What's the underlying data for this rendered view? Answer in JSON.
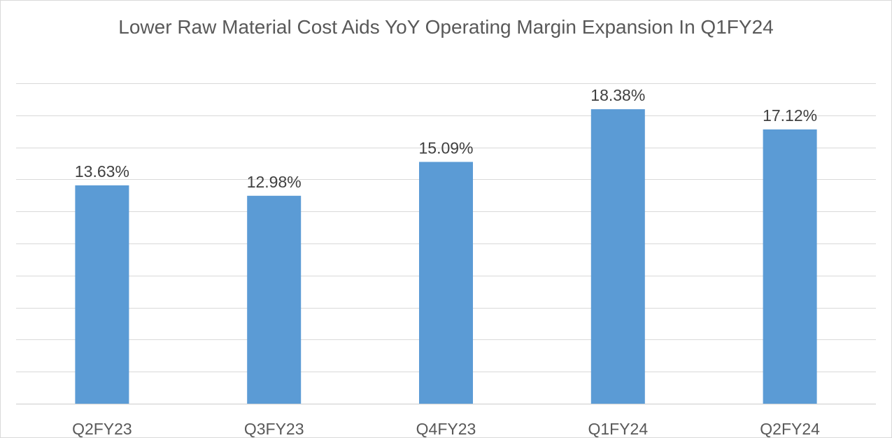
{
  "chart_data": {
    "type": "bar",
    "title": "Lower Raw Material Cost Aids YoY Operating Margin Expansion In Q1FY24",
    "xlabel": "",
    "ylabel": "",
    "categories": [
      "Q2FY23",
      "Q3FY23",
      "Q4FY23",
      "Q1FY24",
      "Q2FY24"
    ],
    "values": [
      13.63,
      12.98,
      15.09,
      18.38,
      17.12
    ],
    "data_labels": [
      "13.63%",
      "12.98%",
      "15.09%",
      "18.38%",
      "17.12%"
    ],
    "ylim": [
      0,
      20
    ],
    "grid_step": 2,
    "y_axis_labels_shown": false,
    "grid": true,
    "legend": "none",
    "bar_color": "#5b9bd5"
  }
}
